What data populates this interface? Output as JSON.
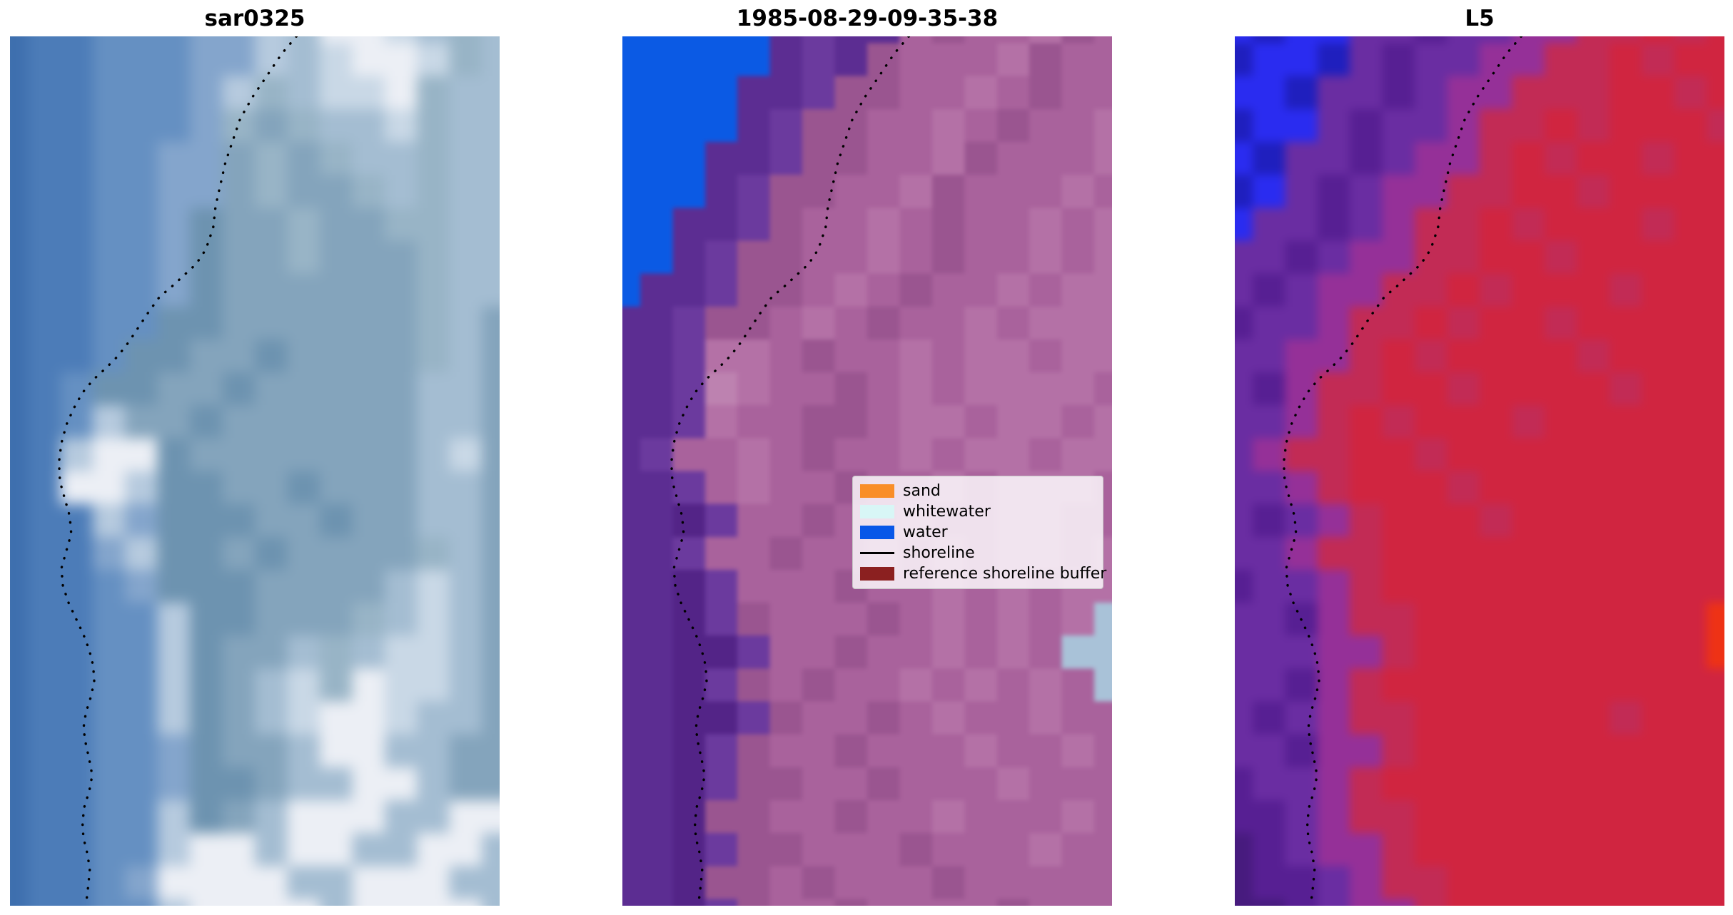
{
  "figure": {
    "background": "#ffffff"
  },
  "chart_data": {
    "type": "heatmap",
    "description": "Three satellite image panels with dotted shoreline overlay and classification legend",
    "panels": [
      {
        "id": "sar0325",
        "title": "sar0325",
        "palette": {
          "0": "#3e6fae",
          "1": "#4c7cb8",
          "2": "#6590c2",
          "3": "#84a5cc",
          "4": "#b6cade",
          "5": "#eceff5",
          "6": "#6d93b0",
          "7": "#84a4bc",
          "9": "#a4bdd2",
          "a": "#c9d8e6",
          "c": "#98b4c6"
        },
        "grid": [
          "011222334955a9c9",
          "0112223349a55ac9",
          "01122234c9aa5c99",
          "0112223c7c99ac99",
          "01122337c7c99c99",
          "01122337c77c9c99",
          "011223677c77cc99",
          "011223677c777c99",
          "0112236777777c99",
          "0112266777777c97",
          "0112667767777c97",
          "0126677677777997",
          "0124776777777997",
          "01455677777779a7",
          "0155466776777997",
          "0114366677677997",
          "0113466767777c97",
          "0112366677779a97",
          "01122466777c9a97",
          "0112246779c9aa97",
          "011224679ac5aa97",
          "011224679a55a997",
          "0112236779559977",
          "0112236679955977",
          "0112246795559955",
          "0112245595599559",
          "0112355559955599",
          "0112245555955559"
        ]
      },
      {
        "id": "classified",
        "title": "1985-08-29-09-35-38",
        "palette": {
          "0": "#0b5ae4",
          "1": "#5c2d92",
          "2": "#532487",
          "3": "#6b3a9e",
          "4": "#9a5590",
          "5": "#a9629c",
          "6": "#b471a6",
          "8": "#bd82b0",
          "9": "#a9c2d8"
        },
        "grid": [
          "0000013115455645",
          "0000013145556455",
          "0000113445565455",
          "0000134455654556",
          "0001134455645556",
          "0001344556455565",
          "0011345565455656",
          "0013445565455656",
          "0113445654556566",
          "1134456545565666",
          "1136654556566566",
          "1138655456566665",
          "1136554456656656",
          "1355654556566566",
          "1135655455656665",
          "1123554556556655",
          "1135545565656656",
          "1123555455656566",
          "1123455545656569",
          "1122355455656599",
          "1123454556565659",
          "1122345545655655",
          "1123455455565565",
          "1123445545556555",
          "1124455455655565",
          "1123445554555655",
          "1124454555455555",
          "1123455455554555"
        ]
      },
      {
        "id": "L5",
        "title": "L5",
        "palette": {
          "0": "#2a2cf0",
          "1": "#1f1fbe",
          "2": "#6a2da2",
          "3": "#571f93",
          "4": "#953098",
          "5": "#c22b55",
          "6": "#d02540",
          "8": "#ee3215",
          "9": "#471b7e"
        },
        "grid": [
          "0100223224455656",
          "1001232244556566",
          "0012232445556656",
          "1002322455656665",
          "0122324456566566",
          "1023244556656666",
          "0223245565666566",
          "2232445566566666",
          "2324455656665666",
          "3224556566566666",
          "2244565666656666",
          "2345566566665666",
          "2245656665666666",
          "2455665666666666",
          "2245666566666666",
          "2324566656666666",
          "2245566666666666",
          "3224566666666666",
          "2234556666666668",
          "2224456666666668",
          "2234566666666666",
          "2324556666665666",
          "2234456666666666",
          "3224566666666666",
          "3324556666666666",
          "9324456666666666",
          "9332455666666666",
          "9932445666666666"
        ]
      }
    ],
    "shoreline": {
      "color": "#000000",
      "style": "dotted",
      "points": [
        [
          0.585,
          0.0
        ],
        [
          0.555,
          0.02
        ],
        [
          0.525,
          0.045
        ],
        [
          0.495,
          0.07
        ],
        [
          0.47,
          0.095
        ],
        [
          0.455,
          0.12
        ],
        [
          0.44,
          0.145
        ],
        [
          0.43,
          0.17
        ],
        [
          0.42,
          0.195
        ],
        [
          0.415,
          0.22
        ],
        [
          0.4,
          0.245
        ],
        [
          0.38,
          0.262
        ],
        [
          0.355,
          0.275
        ],
        [
          0.33,
          0.288
        ],
        [
          0.305,
          0.3
        ],
        [
          0.282,
          0.318
        ],
        [
          0.262,
          0.335
        ],
        [
          0.242,
          0.352
        ],
        [
          0.22,
          0.368
        ],
        [
          0.195,
          0.382
        ],
        [
          0.17,
          0.395
        ],
        [
          0.148,
          0.41
        ],
        [
          0.13,
          0.428
        ],
        [
          0.115,
          0.447
        ],
        [
          0.105,
          0.468
        ],
        [
          0.1,
          0.49
        ],
        [
          0.102,
          0.512
        ],
        [
          0.112,
          0.532
        ],
        [
          0.122,
          0.552
        ],
        [
          0.125,
          0.572
        ],
        [
          0.115,
          0.592
        ],
        [
          0.105,
          0.612
        ],
        [
          0.108,
          0.632
        ],
        [
          0.12,
          0.652
        ],
        [
          0.135,
          0.67
        ],
        [
          0.15,
          0.688
        ],
        [
          0.162,
          0.706
        ],
        [
          0.17,
          0.724
        ],
        [
          0.172,
          0.742
        ],
        [
          0.165,
          0.76
        ],
        [
          0.155,
          0.778
        ],
        [
          0.15,
          0.796
        ],
        [
          0.155,
          0.814
        ],
        [
          0.162,
          0.832
        ],
        [
          0.168,
          0.85
        ],
        [
          0.162,
          0.868
        ],
        [
          0.152,
          0.886
        ],
        [
          0.148,
          0.904
        ],
        [
          0.15,
          0.922
        ],
        [
          0.158,
          0.94
        ],
        [
          0.163,
          0.958
        ],
        [
          0.16,
          0.976
        ],
        [
          0.155,
          1.0
        ]
      ]
    },
    "legend": {
      "position": "center-right of middle panel",
      "items": [
        {
          "label": "sand",
          "color": "#f98e28",
          "type": "patch"
        },
        {
          "label": "whitewater",
          "color": "#d8f6f6",
          "type": "patch"
        },
        {
          "label": "water",
          "color": "#0857e8",
          "type": "patch"
        },
        {
          "label": "shoreline",
          "color": "#000000",
          "type": "line"
        },
        {
          "label": "reference shoreline buffer",
          "color": "#8b2020",
          "type": "patch"
        }
      ]
    }
  }
}
